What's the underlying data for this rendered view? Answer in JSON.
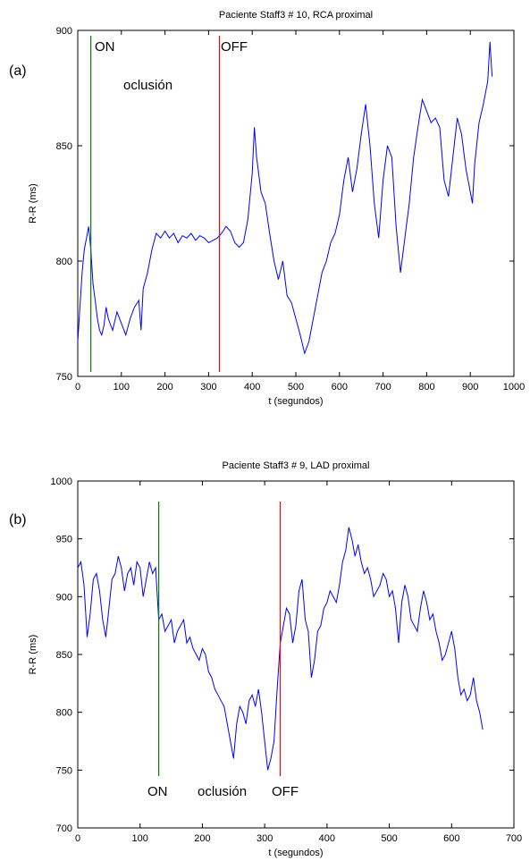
{
  "chart_data": [
    {
      "panel_label": "(a)",
      "type": "line",
      "title": "Paciente Staff3 # 10, RCA proximal",
      "xlabel": "t (segundos)",
      "ylabel": "R-R (ms)",
      "xlim": [
        0,
        1000
      ],
      "ylim": [
        750,
        900
      ],
      "xticks": [
        0,
        100,
        200,
        300,
        400,
        500,
        600,
        700,
        800,
        900,
        1000
      ],
      "yticks": [
        750,
        800,
        850,
        900
      ],
      "grid": false,
      "series": [
        {
          "color": "#0000ff",
          "x": [
            0,
            5,
            10,
            15,
            20,
            25,
            30,
            35,
            40,
            45,
            50,
            55,
            60,
            65,
            70,
            80,
            90,
            100,
            110,
            120,
            130,
            140,
            145,
            150,
            160,
            170,
            180,
            190,
            200,
            210,
            220,
            230,
            240,
            250,
            260,
            270,
            280,
            290,
            300,
            310,
            320,
            330,
            340,
            350,
            360,
            370,
            380,
            390,
            400,
            405,
            410,
            420,
            430,
            440,
            450,
            460,
            470,
            480,
            490,
            500,
            510,
            520,
            530,
            540,
            550,
            560,
            570,
            580,
            590,
            600,
            610,
            620,
            630,
            640,
            650,
            660,
            670,
            680,
            690,
            700,
            710,
            720,
            730,
            740,
            750,
            760,
            770,
            780,
            790,
            800,
            810,
            820,
            830,
            840,
            850,
            860,
            870,
            880,
            890,
            900,
            905,
            910,
            920,
            930,
            940,
            945,
            950
          ],
          "y": [
            765,
            780,
            795,
            805,
            810,
            815,
            805,
            790,
            783,
            775,
            770,
            768,
            772,
            780,
            775,
            770,
            778,
            773,
            768,
            775,
            780,
            783,
            770,
            788,
            795,
            805,
            812,
            810,
            813,
            810,
            812,
            808,
            811,
            810,
            812,
            809,
            811,
            810,
            808,
            809,
            810,
            812,
            815,
            813,
            808,
            806,
            808,
            818,
            838,
            858,
            845,
            830,
            825,
            812,
            800,
            792,
            800,
            785,
            782,
            775,
            768,
            760,
            765,
            775,
            785,
            795,
            800,
            808,
            812,
            820,
            835,
            845,
            830,
            840,
            855,
            868,
            850,
            825,
            810,
            835,
            850,
            845,
            815,
            795,
            810,
            825,
            845,
            858,
            870,
            865,
            860,
            862,
            858,
            835,
            828,
            845,
            862,
            855,
            840,
            830,
            825,
            842,
            860,
            868,
            878,
            895,
            880
          ]
        }
      ],
      "annotations": [
        {
          "text": "ON",
          "x": 30,
          "color": "#008000"
        },
        {
          "text": "oclusión"
        },
        {
          "text": "OFF",
          "x": 325,
          "color": "#ff0000"
        }
      ]
    },
    {
      "panel_label": "(b)",
      "type": "line",
      "title": "Paciente Staff3 # 9, LAD proximal",
      "xlabel": "t (segundos)",
      "ylabel": "R-R (ms)",
      "xlim": [
        0,
        700
      ],
      "ylim": [
        700,
        1000
      ],
      "xticks": [
        0,
        100,
        200,
        300,
        400,
        500,
        600,
        700
      ],
      "yticks": [
        700,
        750,
        800,
        850,
        900,
        950,
        1000
      ],
      "grid": false,
      "series": [
        {
          "color": "#0000ff",
          "x": [
            0,
            5,
            10,
            15,
            20,
            25,
            30,
            35,
            40,
            45,
            50,
            55,
            60,
            65,
            70,
            75,
            80,
            85,
            90,
            95,
            100,
            105,
            110,
            115,
            120,
            125,
            130,
            135,
            140,
            145,
            150,
            155,
            160,
            165,
            170,
            175,
            180,
            185,
            190,
            195,
            200,
            205,
            210,
            215,
            220,
            225,
            230,
            235,
            240,
            245,
            250,
            255,
            260,
            265,
            270,
            275,
            280,
            285,
            290,
            295,
            300,
            305,
            310,
            315,
            320,
            325,
            330,
            335,
            340,
            345,
            350,
            355,
            360,
            365,
            370,
            375,
            380,
            385,
            390,
            395,
            400,
            405,
            410,
            415,
            420,
            425,
            430,
            435,
            440,
            445,
            450,
            455,
            460,
            465,
            470,
            475,
            480,
            485,
            490,
            495,
            500,
            505,
            510,
            515,
            520,
            525,
            530,
            535,
            540,
            545,
            550,
            555,
            560,
            565,
            570,
            575,
            580,
            585,
            590,
            595,
            600,
            605,
            610,
            615,
            620,
            625,
            630,
            635,
            640,
            645,
            650
          ],
          "y": [
            925,
            930,
            910,
            865,
            885,
            915,
            920,
            905,
            880,
            865,
            890,
            915,
            920,
            935,
            925,
            905,
            920,
            925,
            910,
            930,
            925,
            900,
            915,
            930,
            920,
            925,
            880,
            885,
            870,
            875,
            880,
            860,
            870,
            875,
            880,
            860,
            865,
            855,
            850,
            845,
            855,
            850,
            835,
            830,
            820,
            815,
            810,
            805,
            790,
            775,
            760,
            790,
            805,
            800,
            790,
            810,
            815,
            805,
            820,
            800,
            775,
            750,
            760,
            775,
            820,
            860,
            875,
            890,
            885,
            860,
            875,
            905,
            915,
            880,
            870,
            830,
            845,
            870,
            875,
            890,
            895,
            905,
            900,
            895,
            910,
            930,
            940,
            960,
            950,
            935,
            945,
            930,
            920,
            925,
            915,
            900,
            905,
            910,
            920,
            915,
            900,
            905,
            890,
            860,
            895,
            910,
            900,
            880,
            875,
            870,
            890,
            905,
            895,
            880,
            885,
            870,
            860,
            845,
            850,
            860,
            870,
            855,
            830,
            815,
            820,
            810,
            815,
            830,
            810,
            800,
            785
          ]
        }
      ],
      "annotations": [
        {
          "text": "ON",
          "x": 130,
          "color": "#008000"
        },
        {
          "text": "oclusión"
        },
        {
          "text": "OFF",
          "x": 325,
          "color": "#ff0000"
        }
      ]
    }
  ]
}
